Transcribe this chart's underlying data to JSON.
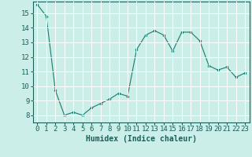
{
  "x": [
    0,
    1,
    2,
    3,
    4,
    5,
    6,
    7,
    8,
    9,
    10,
    11,
    12,
    13,
    14,
    15,
    16,
    17,
    18,
    19,
    20,
    21,
    22,
    23
  ],
  "y": [
    15.6,
    14.8,
    9.7,
    8.0,
    8.2,
    8.0,
    8.5,
    8.8,
    9.1,
    9.5,
    9.3,
    12.5,
    13.5,
    13.8,
    13.5,
    12.4,
    13.7,
    13.7,
    13.1,
    11.4,
    11.1,
    11.3,
    10.6,
    10.9
  ],
  "xlabel": "Humidex (Indice chaleur)",
  "ylim": [
    7.5,
    15.8
  ],
  "xlim": [
    -0.5,
    23.5
  ],
  "yticks": [
    8,
    9,
    10,
    11,
    12,
    13,
    14,
    15
  ],
  "xticks": [
    0,
    1,
    2,
    3,
    4,
    5,
    6,
    7,
    8,
    9,
    10,
    11,
    12,
    13,
    14,
    15,
    16,
    17,
    18,
    19,
    20,
    21,
    22,
    23
  ],
  "line_color": "#1a7a6e",
  "marker_color": "#1a7a6e",
  "bg_color": "#cceee8",
  "grid_color": "#ffffff",
  "text_color": "#1a5f5a",
  "xlabel_fontsize": 7,
  "tick_fontsize": 6.5
}
